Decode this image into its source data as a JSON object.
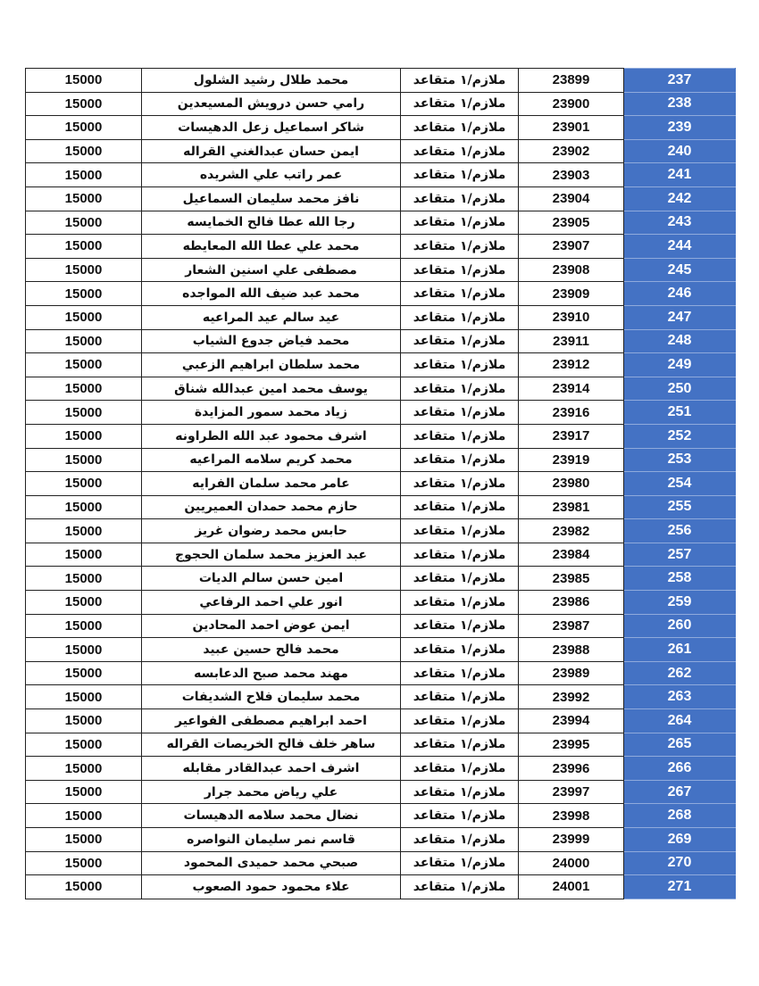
{
  "table": {
    "accent_color": "#4472C4",
    "rows": [
      {
        "index": "237",
        "number": "23899",
        "rank": "ملازم/١ متقاعد",
        "name": "محمد طلال رشيد الشلول",
        "amount": "15000"
      },
      {
        "index": "238",
        "number": "23900",
        "rank": "ملازم/١ متقاعد",
        "name": "رامي حسن درويش المسيعدين",
        "amount": "15000"
      },
      {
        "index": "239",
        "number": "23901",
        "rank": "ملازم/١ متقاعد",
        "name": "شاكر اسماعيل زعل الدهيسات",
        "amount": "15000"
      },
      {
        "index": "240",
        "number": "23902",
        "rank": "ملازم/١ متقاعد",
        "name": "ايمن حسان عبدالغني القراله",
        "amount": "15000"
      },
      {
        "index": "241",
        "number": "23903",
        "rank": "ملازم/١ متقاعد",
        "name": "عمر راتب علي الشريده",
        "amount": "15000"
      },
      {
        "index": "242",
        "number": "23904",
        "rank": "ملازم/١ متقاعد",
        "name": "نافز محمد سليمان السماعيل",
        "amount": "15000"
      },
      {
        "index": "243",
        "number": "23905",
        "rank": "ملازم/١ متقاعد",
        "name": "رجا الله عطا فالح الخمايسه",
        "amount": "15000"
      },
      {
        "index": "244",
        "number": "23907",
        "rank": "ملازم/١ متقاعد",
        "name": "محمد علي عطا الله المعايطه",
        "amount": "15000"
      },
      {
        "index": "245",
        "number": "23908",
        "rank": "ملازم/١ متقاعد",
        "name": "مصطفى علي اسنين الشعار",
        "amount": "15000"
      },
      {
        "index": "246",
        "number": "23909",
        "rank": "ملازم/١ متقاعد",
        "name": "محمد عبد ضيف الله المواجده",
        "amount": "15000"
      },
      {
        "index": "247",
        "number": "23910",
        "rank": "ملازم/١ متقاعد",
        "name": "عيد سالم عيد المراعيه",
        "amount": "15000"
      },
      {
        "index": "248",
        "number": "23911",
        "rank": "ملازم/١ متقاعد",
        "name": "محمد فياض جدوع الشياب",
        "amount": "15000"
      },
      {
        "index": "249",
        "number": "23912",
        "rank": "ملازم/١ متقاعد",
        "name": "محمد سلطان ابراهيم الزعبي",
        "amount": "15000"
      },
      {
        "index": "250",
        "number": "23914",
        "rank": "ملازم/١ متقاعد",
        "name": "يوسف محمد امين عبدالله شناق",
        "amount": "15000"
      },
      {
        "index": "251",
        "number": "23916",
        "rank": "ملازم/١ متقاعد",
        "name": "زياد محمد سمور المزايدة",
        "amount": "15000"
      },
      {
        "index": "252",
        "number": "23917",
        "rank": "ملازم/١ متقاعد",
        "name": "اشرف محمود عبد الله الطراونه",
        "amount": "15000"
      },
      {
        "index": "253",
        "number": "23919",
        "rank": "ملازم/١ متقاعد",
        "name": "محمد كريم سلامه المراعيه",
        "amount": "15000"
      },
      {
        "index": "254",
        "number": "23980",
        "rank": "ملازم/١ متقاعد",
        "name": "عامر محمد سلمان الفرايه",
        "amount": "15000"
      },
      {
        "index": "255",
        "number": "23981",
        "rank": "ملازم/١ متقاعد",
        "name": "حازم محمد حمدان العميريين",
        "amount": "15000"
      },
      {
        "index": "256",
        "number": "23982",
        "rank": "ملازم/١ متقاعد",
        "name": "حابس محمد رضوان غريز",
        "amount": "15000"
      },
      {
        "index": "257",
        "number": "23984",
        "rank": "ملازم/١ متقاعد",
        "name": "عبد العزيز محمد سلمان الحجوج",
        "amount": "15000"
      },
      {
        "index": "258",
        "number": "23985",
        "rank": "ملازم/١ متقاعد",
        "name": "امين حسن سالم الديات",
        "amount": "15000"
      },
      {
        "index": "259",
        "number": "23986",
        "rank": "ملازم/١ متقاعد",
        "name": "انور علي احمد الرفاعي",
        "amount": "15000"
      },
      {
        "index": "260",
        "number": "23987",
        "rank": "ملازم/١ متقاعد",
        "name": "ايمن عوض احمد المحادين",
        "amount": "15000"
      },
      {
        "index": "261",
        "number": "23988",
        "rank": "ملازم/١ متقاعد",
        "name": "محمد فالح حسين عبيد",
        "amount": "15000"
      },
      {
        "index": "262",
        "number": "23989",
        "rank": "ملازم/١ متقاعد",
        "name": "مهند محمد صبح الدعابسه",
        "amount": "15000"
      },
      {
        "index": "263",
        "number": "23992",
        "rank": "ملازم/١ متقاعد",
        "name": "محمد سليمان فلاح الشديفات",
        "amount": "15000"
      },
      {
        "index": "264",
        "number": "23994",
        "rank": "ملازم/١ متقاعد",
        "name": "احمد ابراهيم مصطفى الفواعير",
        "amount": "15000"
      },
      {
        "index": "265",
        "number": "23995",
        "rank": "ملازم/١ متقاعد",
        "name": "ساهر خلف فالح الخريصات القراله",
        "amount": "15000"
      },
      {
        "index": "266",
        "number": "23996",
        "rank": "ملازم/١ متقاعد",
        "name": "اشرف احمد عبدالقادر مقابله",
        "amount": "15000"
      },
      {
        "index": "267",
        "number": "23997",
        "rank": "ملازم/١ متقاعد",
        "name": "علي رياض محمد جرار",
        "amount": "15000"
      },
      {
        "index": "268",
        "number": "23998",
        "rank": "ملازم/١ متقاعد",
        "name": "نضال محمد سلامه الدهيسات",
        "amount": "15000"
      },
      {
        "index": "269",
        "number": "23999",
        "rank": "ملازم/١ متقاعد",
        "name": "قاسم نمر سليمان النواصره",
        "amount": "15000"
      },
      {
        "index": "270",
        "number": "24000",
        "rank": "ملازم/١ متقاعد",
        "name": "صبحي محمد حميدى المحمود",
        "amount": "15000"
      },
      {
        "index": "271",
        "number": "24001",
        "rank": "ملازم/١ متقاعد",
        "name": "علاء محمود حمود الصعوب",
        "amount": "15000"
      }
    ]
  }
}
